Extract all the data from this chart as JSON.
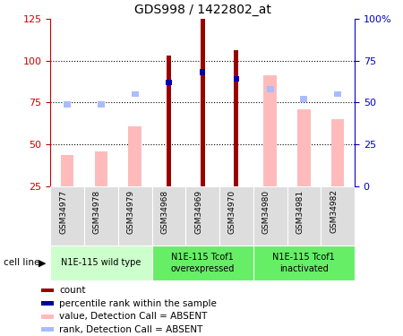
{
  "title": "GDS998 / 1422802_at",
  "samples": [
    "GSM34977",
    "GSM34978",
    "GSM34979",
    "GSM34968",
    "GSM34969",
    "GSM34970",
    "GSM34980",
    "GSM34981",
    "GSM34982"
  ],
  "count_values": [
    null,
    null,
    null,
    103,
    125,
    106,
    null,
    null,
    null
  ],
  "percentile_values": [
    null,
    null,
    null,
    62,
    68,
    64,
    null,
    null,
    null
  ],
  "pink_value": [
    44,
    46,
    61,
    null,
    null,
    null,
    91,
    71,
    65
  ],
  "light_blue_value": [
    49,
    49,
    55,
    null,
    null,
    null,
    58,
    52,
    55
  ],
  "left_ylim": [
    25,
    125
  ],
  "right_ylim": [
    0,
    100
  ],
  "left_yticks": [
    25,
    50,
    75,
    100,
    125
  ],
  "right_yticks": [
    0,
    25,
    50,
    75,
    100
  ],
  "right_yticklabels": [
    "0",
    "25",
    "50",
    "75",
    "100%"
  ],
  "groups": [
    {
      "label": "N1E-115 wild type",
      "start": 0,
      "end": 2,
      "color": "#ccffcc"
    },
    {
      "label": "N1E-115 Tcof1\noverexpressed",
      "start": 3,
      "end": 5,
      "color": "#66ee66"
    },
    {
      "label": "N1E-115 Tcof1\ninactivated",
      "start": 6,
      "end": 8,
      "color": "#66ee66"
    }
  ],
  "count_color": "#990000",
  "percentile_color": "#0000aa",
  "pink_color": "#ffbbbb",
  "light_blue_color": "#aabbff",
  "left_axis_color": "#cc0000",
  "right_axis_color": "#0000cc",
  "cell_line_label": "cell line"
}
